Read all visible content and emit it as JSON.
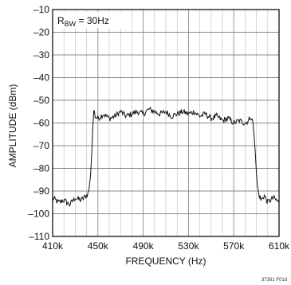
{
  "chart_data": {
    "type": "line",
    "xlabel": "FREQUENCY (Hz)",
    "ylabel": "AMPLITUDE (dBm)",
    "xlim": [
      410000,
      610000
    ],
    "ylim": [
      -110,
      -10
    ],
    "x_ticks": [
      410000,
      450000,
      490000,
      530000,
      570000,
      610000
    ],
    "x_tick_labels": [
      "410k",
      "450k",
      "490k",
      "530k",
      "570k",
      "610k"
    ],
    "y_ticks": [
      -10,
      -20,
      -30,
      -40,
      -50,
      -60,
      -70,
      -80,
      -90,
      -100,
      -110
    ],
    "y_tick_labels": [
      "–10",
      "–20",
      "–30",
      "–40",
      "–50",
      "–60",
      "–70",
      "–80",
      "–90",
      "–100",
      "–110"
    ],
    "grid": true,
    "annotation": {
      "main": "R",
      "sub": "BW",
      "rest": " = 30Hz"
    },
    "series": [
      {
        "x": [
          410000,
          415000,
          420000,
          425000,
          430000,
          435000,
          440000,
          442000,
          443500,
          444500,
          445500,
          446500,
          447500,
          450000,
          455000,
          460000,
          465000,
          470000,
          475000,
          480000,
          485000,
          490000,
          495000,
          500000,
          505000,
          510000,
          515000,
          520000,
          525000,
          530000,
          535000,
          540000,
          545000,
          550000,
          555000,
          560000,
          565000,
          570000,
          575000,
          580000,
          583000,
          585000,
          587000,
          588000,
          589000,
          590000,
          591000,
          592000,
          594000,
          597000,
          600000,
          605000,
          610000
        ],
        "y": [
          -93,
          -95,
          -94,
          -96,
          -93,
          -94,
          -92,
          -90,
          -83,
          -74,
          -62,
          -54,
          -57,
          -58,
          -56,
          -58,
          -57,
          -55,
          -57,
          -56,
          -55,
          -56,
          -54,
          -55,
          -56,
          -55,
          -57,
          -56,
          -55,
          -56,
          -55,
          -57,
          -56,
          -58,
          -57,
          -59,
          -58,
          -60,
          -59,
          -60,
          -59,
          -57,
          -60,
          -66,
          -73,
          -82,
          -88,
          -91,
          -94,
          -92,
          -95,
          -93,
          -95
        ],
        "color": "#111111"
      }
    ]
  },
  "figure_id": "37361 F01d"
}
